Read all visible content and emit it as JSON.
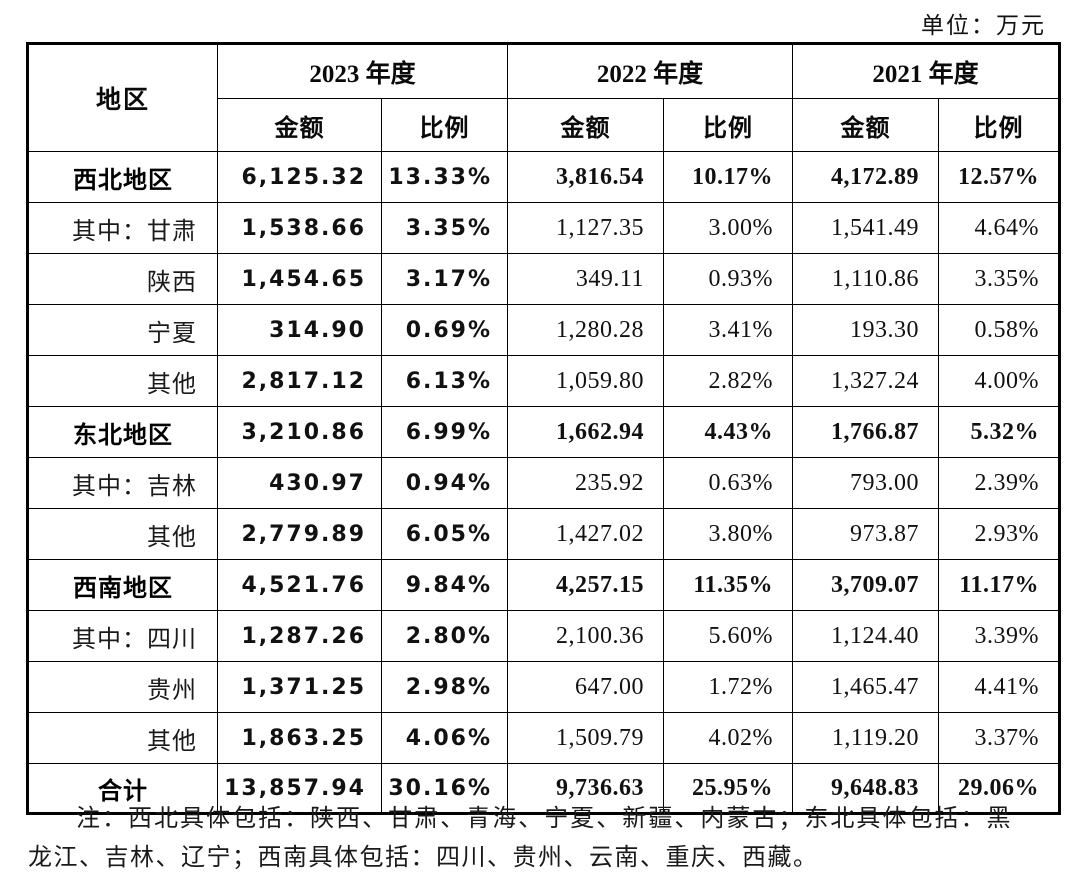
{
  "page": {
    "unit_label": "单位：万元"
  },
  "table": {
    "region_header": "地区",
    "year_headers": [
      "2023 年度",
      "2022 年度",
      "2021 年度"
    ],
    "sub_headers": [
      "金额",
      "比例"
    ],
    "rows": [
      {
        "label": "西北地区",
        "style": "group",
        "values": [
          "6,125.32",
          "13.33%",
          "3,816.54",
          "10.17%",
          "4,172.89",
          "12.57%"
        ]
      },
      {
        "label": "其中：甘肃",
        "style": "sub",
        "values": [
          "1,538.66",
          "3.35%",
          "1,127.35",
          "3.00%",
          "1,541.49",
          "4.64%"
        ]
      },
      {
        "label": "陕西",
        "style": "sub",
        "values": [
          "1,454.65",
          "3.17%",
          "349.11",
          "0.93%",
          "1,110.86",
          "3.35%"
        ]
      },
      {
        "label": "宁夏",
        "style": "sub",
        "values": [
          "314.90",
          "0.69%",
          "1,280.28",
          "3.41%",
          "193.30",
          "0.58%"
        ]
      },
      {
        "label": "其他",
        "style": "sub",
        "values": [
          "2,817.12",
          "6.13%",
          "1,059.80",
          "2.82%",
          "1,327.24",
          "4.00%"
        ]
      },
      {
        "label": "东北地区",
        "style": "group",
        "values": [
          "3,210.86",
          "6.99%",
          "1,662.94",
          "4.43%",
          "1,766.87",
          "5.32%"
        ]
      },
      {
        "label": "其中：吉林",
        "style": "sub",
        "values": [
          "430.97",
          "0.94%",
          "235.92",
          "0.63%",
          "793.00",
          "2.39%"
        ]
      },
      {
        "label": "其他",
        "style": "sub",
        "values": [
          "2,779.89",
          "6.05%",
          "1,427.02",
          "3.80%",
          "973.87",
          "2.93%"
        ]
      },
      {
        "label": "西南地区",
        "style": "group",
        "values": [
          "4,521.76",
          "9.84%",
          "4,257.15",
          "11.35%",
          "3,709.07",
          "11.17%"
        ]
      },
      {
        "label": "其中：四川",
        "style": "sub",
        "values": [
          "1,287.26",
          "2.80%",
          "2,100.36",
          "5.60%",
          "1,124.40",
          "3.39%"
        ]
      },
      {
        "label": "贵州",
        "style": "sub",
        "values": [
          "1,371.25",
          "2.98%",
          "647.00",
          "1.72%",
          "1,465.47",
          "4.41%"
        ]
      },
      {
        "label": "其他",
        "style": "sub",
        "values": [
          "1,863.25",
          "4.06%",
          "1,509.79",
          "4.02%",
          "1,119.20",
          "3.37%"
        ]
      },
      {
        "label": "合计",
        "style": "total",
        "values": [
          "13,857.94",
          "30.16%",
          "9,736.63",
          "25.95%",
          "9,648.83",
          "29.06%"
        ]
      }
    ]
  },
  "note": "注：西北具体包括：陕西、甘肃、青海、宁夏、新疆、内蒙古；东北具体包括：黑龙江、吉林、辽宁；西南具体包括：四川、贵州、云南、重庆、西藏。",
  "colors": {
    "text": "#111111",
    "border": "#000000",
    "background": "#ffffff"
  }
}
